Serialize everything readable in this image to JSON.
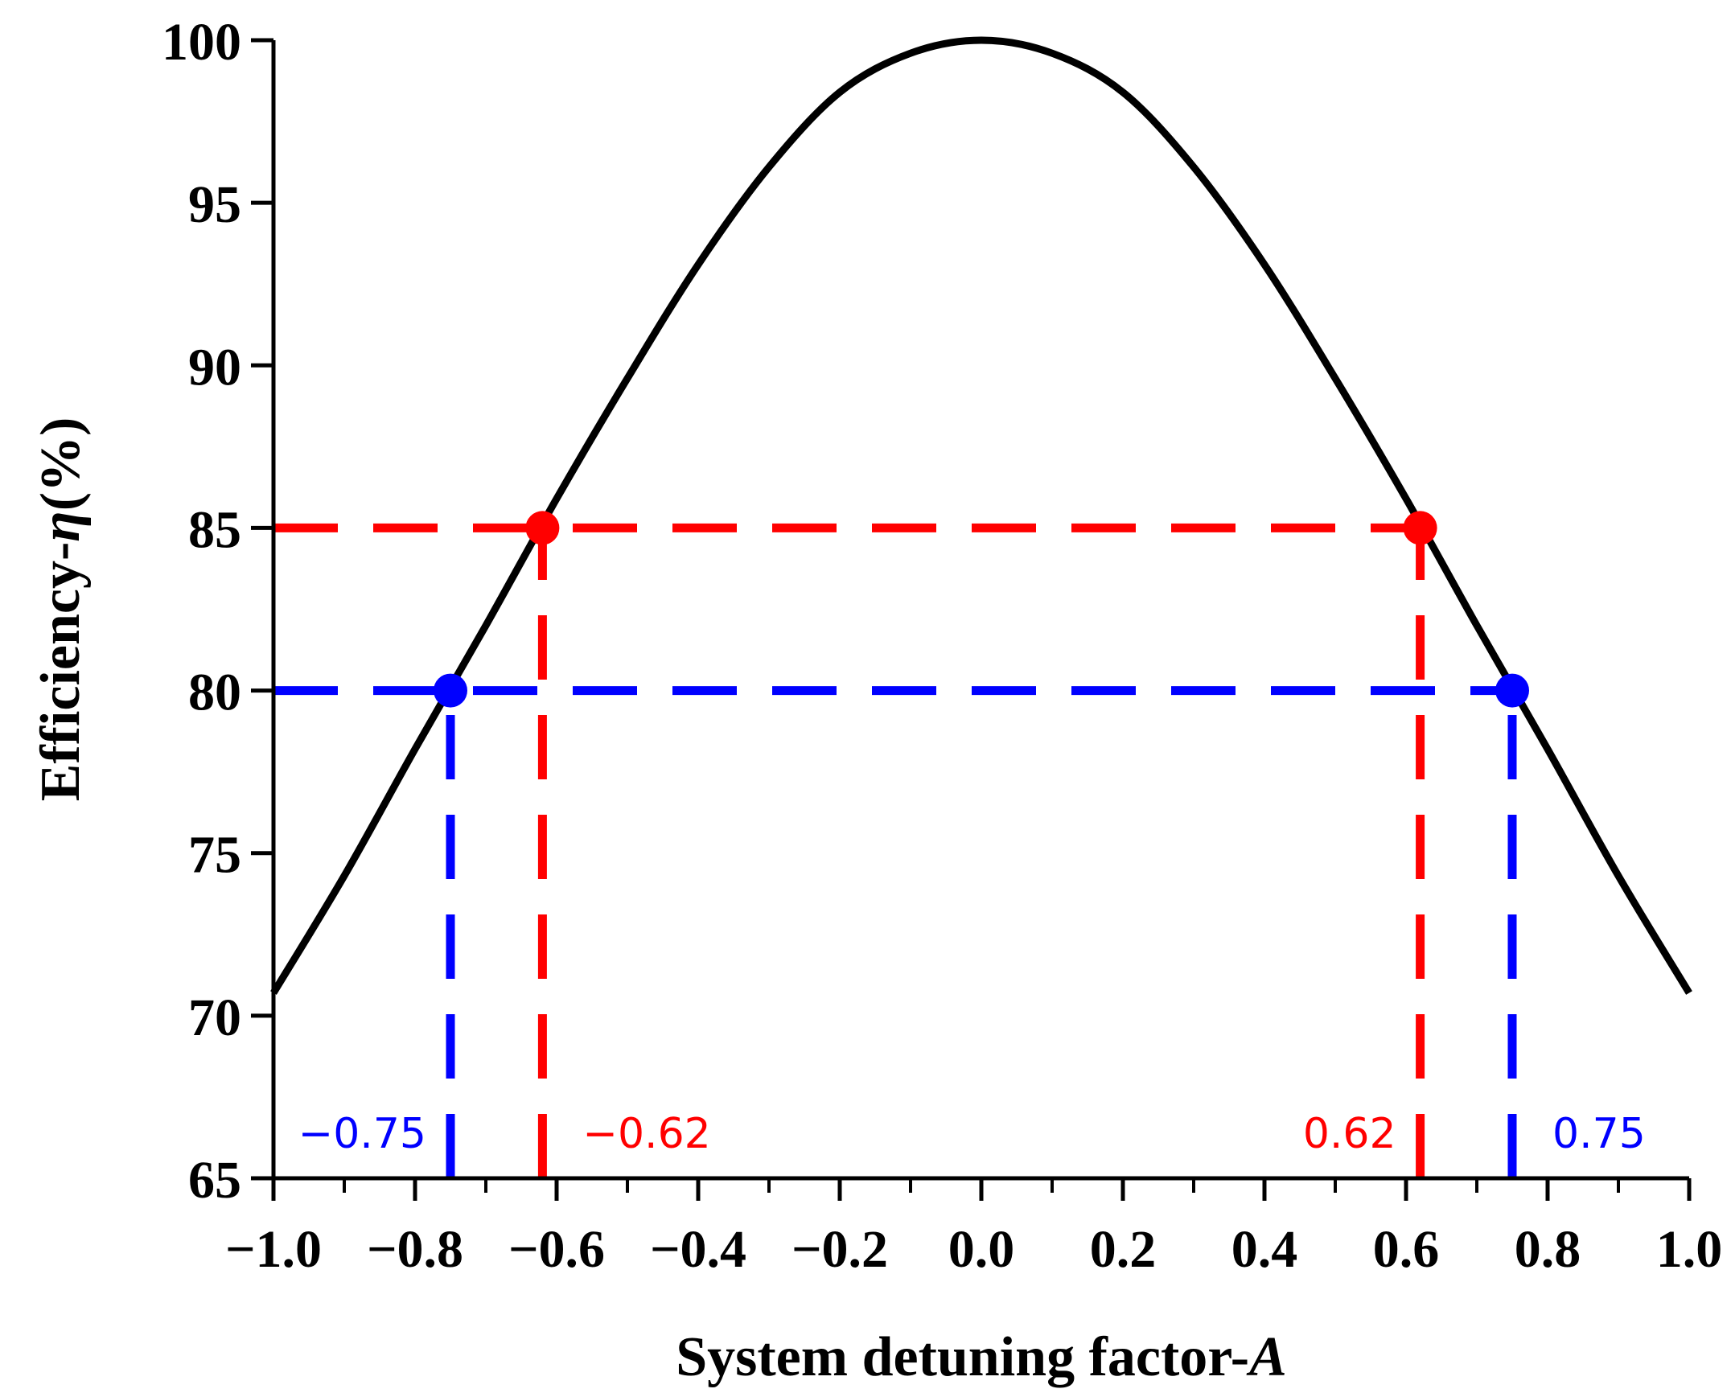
{
  "chart_data": {
    "type": "line",
    "title": "",
    "xlabel": "System detuning factor-A",
    "ylabel": "Efficiency-η(%)",
    "xlabel_parts": {
      "text": "System detuning factor-",
      "var": "A"
    },
    "ylabel_parts": {
      "text": "Efficiency-",
      "var": "η",
      "suffix": "(%)"
    },
    "xlim": [
      -1.0,
      1.0
    ],
    "ylim": [
      65,
      100
    ],
    "x_ticks": [
      -1.0,
      -0.8,
      -0.6,
      -0.4,
      -0.2,
      0.0,
      0.2,
      0.4,
      0.6,
      0.8,
      1.0
    ],
    "x_tick_labels": [
      "−1.0",
      "−0.8",
      "−0.6",
      "−0.4",
      "−0.2",
      "0.0",
      "0.2",
      "0.4",
      "0.6",
      "0.8",
      "1.0"
    ],
    "y_ticks": [
      65,
      70,
      75,
      80,
      85,
      90,
      95,
      100
    ],
    "y_tick_labels": [
      "65",
      "70",
      "75",
      "80",
      "85",
      "90",
      "95",
      "100"
    ],
    "grid": false,
    "legend": "none",
    "series": [
      {
        "name": "efficiency",
        "color": "#000000",
        "style": "solid",
        "x": [
          -1.0,
          -0.9,
          -0.8,
          -0.7,
          -0.6,
          -0.5,
          -0.4,
          -0.3,
          -0.2,
          -0.1,
          0.0,
          0.1,
          0.2,
          0.3,
          0.4,
          0.5,
          0.6,
          0.7,
          0.8,
          0.9,
          1.0
        ],
        "y": [
          70.7,
          74.3,
          78.2,
          82.0,
          85.9,
          89.6,
          93.1,
          96.1,
          98.4,
          99.6,
          100.0,
          99.6,
          98.4,
          96.1,
          93.1,
          89.6,
          85.9,
          82.0,
          78.2,
          74.3,
          70.7
        ]
      }
    ],
    "reference_lines": [
      {
        "name": "red-horizontal",
        "orientation": "horizontal",
        "value": 85,
        "from": -1.0,
        "to": 0.62,
        "color": "#ff0000"
      },
      {
        "name": "red-left-vertical",
        "orientation": "vertical",
        "value": -0.62,
        "from": 65,
        "to": 85,
        "color": "#ff0000"
      },
      {
        "name": "red-right-vertical",
        "orientation": "vertical",
        "value": 0.62,
        "from": 65,
        "to": 85,
        "color": "#ff0000"
      },
      {
        "name": "blue-horizontal",
        "orientation": "horizontal",
        "value": 80,
        "from": -1.0,
        "to": 0.75,
        "color": "#0000ff"
      },
      {
        "name": "blue-left-vertical",
        "orientation": "vertical",
        "value": -0.75,
        "from": 65,
        "to": 80,
        "color": "#0000ff"
      },
      {
        "name": "blue-right-vertical",
        "orientation": "vertical",
        "value": 0.75,
        "from": 65,
        "to": 80,
        "color": "#0000ff"
      }
    ],
    "markers": [
      {
        "name": "red-left-point",
        "x": -0.62,
        "y": 85,
        "color": "#ff0000"
      },
      {
        "name": "red-right-point",
        "x": 0.62,
        "y": 85,
        "color": "#ff0000"
      },
      {
        "name": "blue-left-point",
        "x": -0.75,
        "y": 80,
        "color": "#0000ff"
      },
      {
        "name": "blue-right-point",
        "x": 0.75,
        "y": 80,
        "color": "#0000ff"
      }
    ],
    "annotations": [
      {
        "name": "blue-left-label",
        "text": "−0.75",
        "x": -0.75,
        "color": "#0000ff",
        "side": "left"
      },
      {
        "name": "red-left-label",
        "text": "−0.62",
        "x": -0.62,
        "color": "#ff0000",
        "side": "right"
      },
      {
        "name": "red-right-label",
        "text": "0.62",
        "x": 0.62,
        "color": "#ff0000",
        "side": "left"
      },
      {
        "name": "blue-right-label",
        "text": "0.75",
        "x": 0.75,
        "color": "#0000ff",
        "side": "right"
      }
    ]
  }
}
